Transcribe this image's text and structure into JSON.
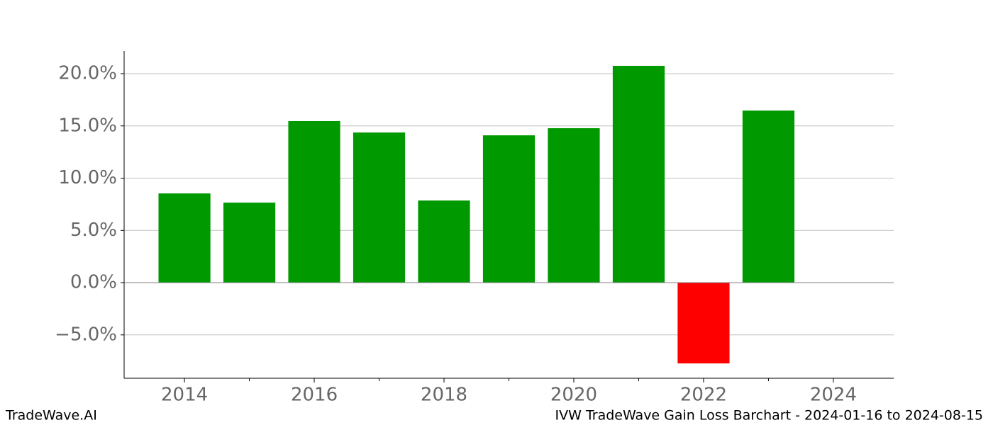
{
  "chart_data": {
    "type": "bar",
    "title": "IVW TradeWave Gain Loss Barchart - 2024-01-16 to 2024-08-15",
    "brand": "TradeWave.AI",
    "x": [
      2014,
      2015,
      2016,
      2017,
      2018,
      2019,
      2020,
      2021,
      2022,
      2023
    ],
    "values": [
      8.54,
      7.66,
      15.46,
      14.37,
      7.86,
      14.1,
      14.78,
      20.75,
      -7.73,
      16.47
    ],
    "colors": [
      "#009900",
      "#009900",
      "#009900",
      "#009900",
      "#009900",
      "#009900",
      "#009900",
      "#009900",
      "#ff0000",
      "#009900"
    ],
    "xlim": [
      2013.07,
      2024.93
    ],
    "xticks": [
      2014,
      2016,
      2018,
      2020,
      2022,
      2024
    ],
    "xminorticks": [
      2015,
      2017,
      2019,
      2021,
      2023
    ],
    "ylim": [
      -9.15,
      22.17
    ],
    "yticks": [
      {
        "value": -5,
        "label": "−5.0%"
      },
      {
        "value": 0,
        "label": "0.0%"
      },
      {
        "value": 5,
        "label": "5.0%"
      },
      {
        "value": 10,
        "label": "10.0%"
      },
      {
        "value": 15,
        "label": "15.0%"
      },
      {
        "value": 20,
        "label": "20.0%"
      }
    ],
    "grid": true
  }
}
